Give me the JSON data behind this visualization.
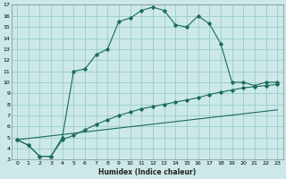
{
  "xlabel": "Humidex (Indice chaleur)",
  "bg_color": "#cce8e8",
  "grid_color": "#99cccc",
  "line_color": "#1a6b5a",
  "xlim": [
    -0.5,
    23.5
  ],
  "ylim": [
    3,
    17
  ],
  "xticks": [
    0,
    1,
    2,
    3,
    4,
    5,
    6,
    7,
    8,
    9,
    10,
    11,
    12,
    13,
    14,
    15,
    16,
    17,
    18,
    19,
    20,
    21,
    22,
    23
  ],
  "yticks": [
    3,
    4,
    5,
    6,
    7,
    8,
    9,
    10,
    11,
    12,
    13,
    14,
    15,
    16,
    17
  ],
  "curve1_x": [
    0,
    1,
    2,
    3,
    4,
    5,
    6,
    7,
    8,
    9,
    10,
    11,
    12,
    13,
    14,
    15,
    16,
    17,
    18,
    19,
    20,
    21,
    22,
    23
  ],
  "curve1_y": [
    4.8,
    4.3,
    3.3,
    3.3,
    5.0,
    11.0,
    11.2,
    12.5,
    13.0,
    15.5,
    15.8,
    16.5,
    16.8,
    16.5,
    15.2,
    15.0,
    16.0,
    15.3,
    13.5,
    10.0,
    10.0,
    9.7,
    10.0,
    10.0
  ],
  "curve2_x": [
    0,
    1,
    2,
    3,
    4,
    5,
    6,
    7,
    8,
    9,
    10,
    11,
    12,
    13,
    14,
    15,
    16,
    17,
    18,
    19,
    20,
    21,
    22,
    23
  ],
  "curve2_y": [
    4.8,
    4.3,
    3.3,
    3.3,
    4.8,
    5.2,
    5.7,
    6.2,
    6.6,
    7.0,
    7.3,
    7.6,
    7.8,
    8.0,
    8.2,
    8.4,
    8.6,
    8.9,
    9.1,
    9.3,
    9.5,
    9.6,
    9.7,
    9.8
  ],
  "curve3_x": [
    0,
    23
  ],
  "curve3_y": [
    4.8,
    7.5
  ]
}
